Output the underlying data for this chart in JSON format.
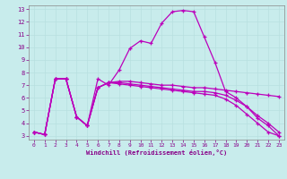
{
  "xlabel": "Windchill (Refroidissement éolien,°C)",
  "xlim": [
    0,
    23
  ],
  "ylim": [
    3,
    13
  ],
  "xticks": [
    0,
    1,
    2,
    3,
    4,
    5,
    6,
    7,
    8,
    9,
    10,
    11,
    12,
    13,
    14,
    15,
    16,
    17,
    18,
    19,
    20,
    21,
    22,
    23
  ],
  "yticks": [
    3,
    4,
    5,
    6,
    7,
    8,
    9,
    10,
    11,
    12,
    13
  ],
  "grid_color": "#b8e0e0",
  "background_color": "#c8ecec",
  "line_color": "#bb00bb",
  "series_x": [
    [
      0,
      1,
      2,
      3,
      4,
      5,
      6,
      7,
      8,
      9,
      10,
      11,
      12,
      13,
      14,
      15,
      16,
      17,
      18,
      19,
      20,
      21,
      22,
      23
    ],
    [
      0,
      1,
      2,
      3,
      4,
      5,
      6,
      7,
      8,
      9,
      10,
      11,
      12,
      13,
      14,
      15,
      16,
      17,
      18,
      19,
      20,
      21,
      22,
      23
    ],
    [
      0,
      1,
      2,
      3,
      4,
      5,
      6,
      7,
      8,
      9,
      10,
      11,
      12,
      13,
      14,
      15,
      16,
      17,
      18,
      19,
      20,
      21,
      22,
      23
    ],
    [
      0,
      1,
      2,
      3,
      4,
      5,
      6,
      7,
      8,
      9,
      10,
      11,
      12,
      13,
      14,
      15,
      16,
      17,
      18,
      19,
      20,
      21,
      22,
      23
    ]
  ],
  "series_y": [
    [
      3.3,
      3.1,
      7.5,
      7.5,
      4.5,
      3.8,
      7.5,
      7.0,
      8.2,
      9.9,
      10.5,
      10.3,
      11.9,
      12.8,
      12.9,
      12.8,
      10.8,
      8.8,
      6.5,
      6.0,
      5.3,
      4.4,
      3.8,
      3.0
    ],
    [
      3.3,
      3.1,
      7.5,
      7.5,
      4.5,
      3.8,
      6.8,
      7.2,
      7.3,
      7.3,
      7.2,
      7.1,
      7.0,
      7.0,
      6.9,
      6.8,
      6.8,
      6.7,
      6.6,
      6.5,
      6.4,
      6.3,
      6.2,
      6.1
    ],
    [
      3.3,
      3.1,
      7.5,
      7.5,
      4.5,
      3.8,
      6.8,
      7.2,
      7.2,
      7.1,
      7.0,
      6.9,
      6.8,
      6.7,
      6.6,
      6.5,
      6.5,
      6.4,
      6.2,
      5.8,
      5.3,
      4.6,
      4.0,
      3.3
    ],
    [
      3.3,
      3.1,
      7.5,
      7.5,
      4.5,
      3.8,
      6.8,
      7.2,
      7.1,
      7.0,
      6.9,
      6.8,
      6.7,
      6.6,
      6.5,
      6.4,
      6.3,
      6.2,
      5.9,
      5.4,
      4.7,
      4.0,
      3.3,
      3.0
    ]
  ]
}
